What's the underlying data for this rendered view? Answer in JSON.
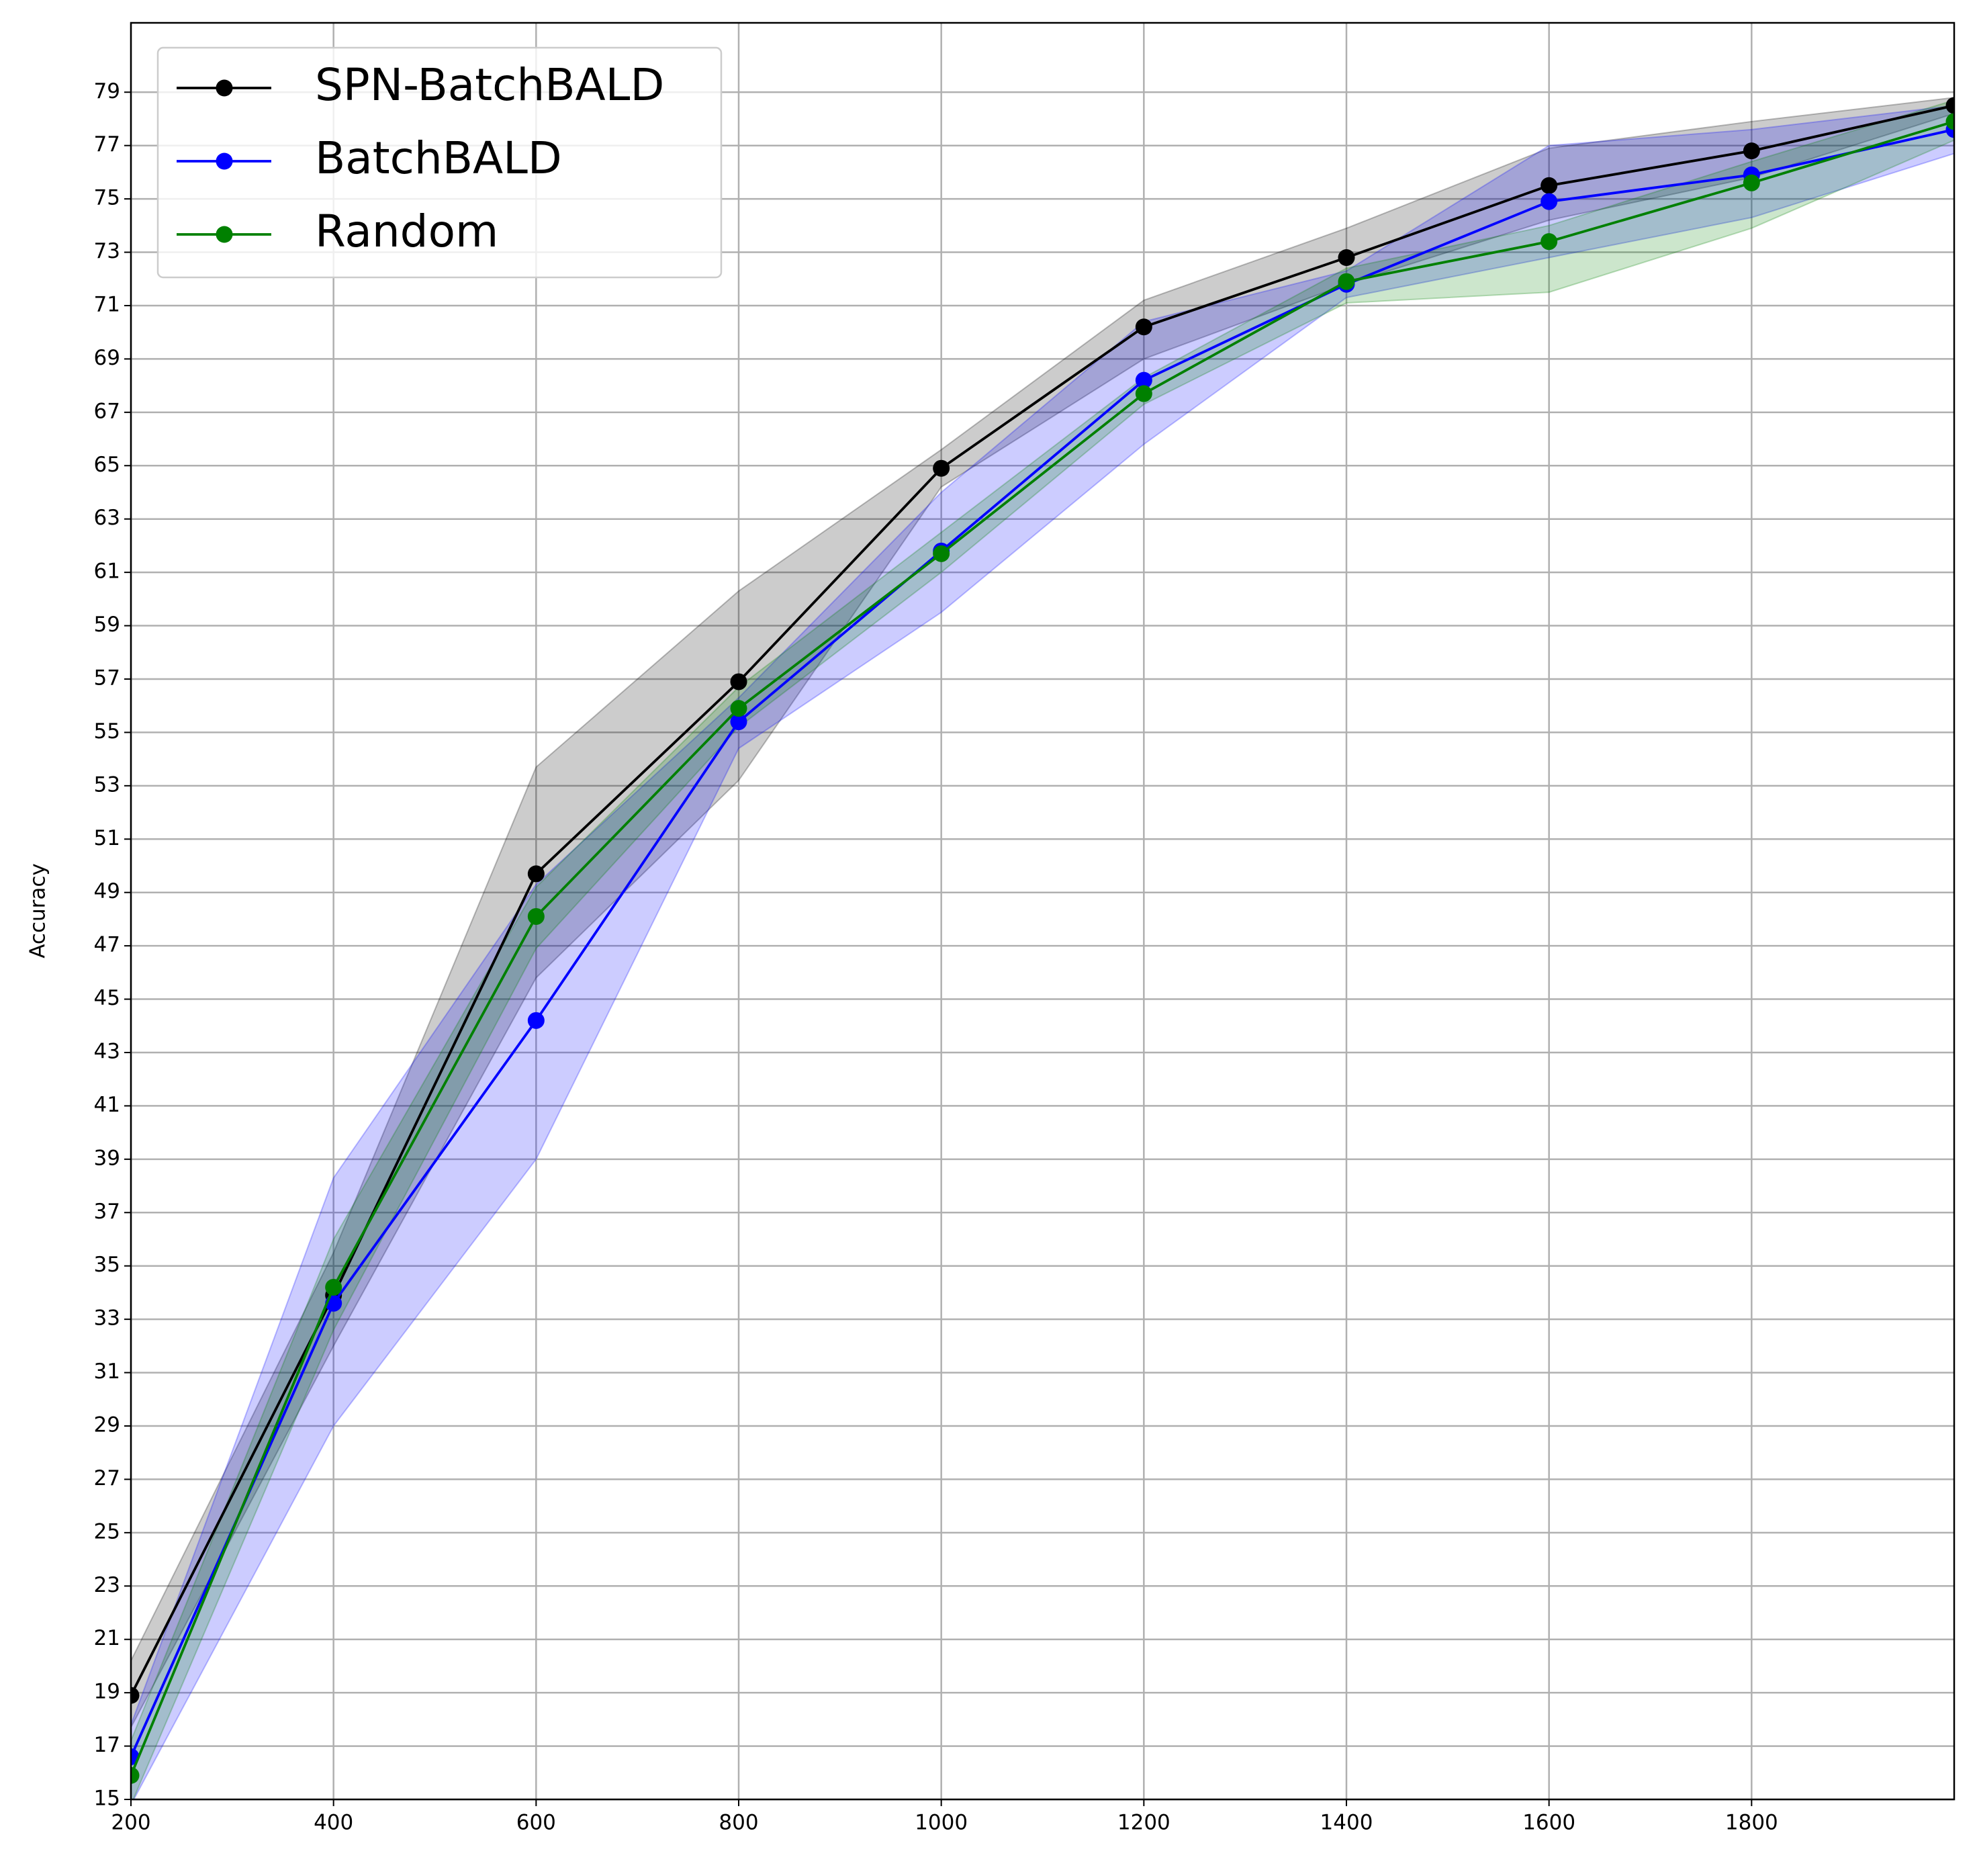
{
  "chart_data": {
    "type": "line",
    "ylabel": "Accuracy",
    "x": [
      200,
      400,
      600,
      800,
      1000,
      1200,
      1400,
      1600,
      1800,
      2000
    ],
    "xlim": [
      200,
      2000
    ],
    "xticks": [
      200,
      400,
      600,
      800,
      1000,
      1200,
      1400,
      1600,
      1800
    ],
    "ylim": [
      15,
      81.6
    ],
    "yticks": [
      15,
      17,
      19,
      21,
      23,
      25,
      27,
      29,
      31,
      33,
      35,
      37,
      39,
      41,
      43,
      45,
      47,
      49,
      51,
      53,
      55,
      57,
      59,
      61,
      63,
      65,
      67,
      69,
      71,
      73,
      75,
      77,
      79
    ],
    "grid": true,
    "legend": "upper left",
    "series": [
      {
        "name": "SPN-BatchBALD",
        "color": "#000000",
        "values": [
          18.9,
          33.9,
          49.7,
          56.9,
          64.9,
          70.2,
          72.8,
          75.5,
          76.8,
          78.5
        ],
        "lower": [
          17.7,
          32.0,
          45.8,
          53.2,
          64.2,
          69.0,
          71.8,
          74.2,
          75.8,
          78.2
        ],
        "upper": [
          20.2,
          35.5,
          53.7,
          60.3,
          65.6,
          71.2,
          73.9,
          76.9,
          77.9,
          78.8
        ]
      },
      {
        "name": "BatchBALD",
        "color": "#0000ff",
        "values": [
          16.6,
          33.6,
          44.2,
          55.4,
          61.8,
          68.2,
          71.8,
          74.9,
          75.9,
          77.6
        ],
        "lower": [
          14.8,
          29.0,
          39.0,
          54.4,
          59.5,
          65.8,
          71.3,
          72.8,
          74.3,
          76.7
        ],
        "upper": [
          17.8,
          38.3,
          49.3,
          56.3,
          64.0,
          70.4,
          72.3,
          77.0,
          77.6,
          78.5
        ]
      },
      {
        "name": "Random",
        "color": "#008000",
        "values": [
          15.9,
          34.2,
          48.1,
          55.9,
          61.7,
          67.7,
          71.9,
          73.4,
          75.6,
          77.9
        ],
        "lower": [
          14.8,
          32.6,
          46.9,
          55.2,
          61.0,
          67.3,
          71.1,
          71.5,
          73.9,
          77.2
        ],
        "upper": [
          17.2,
          36.0,
          49.2,
          56.7,
          62.5,
          68.3,
          72.4,
          74.0,
          76.4,
          78.7
        ]
      }
    ]
  }
}
